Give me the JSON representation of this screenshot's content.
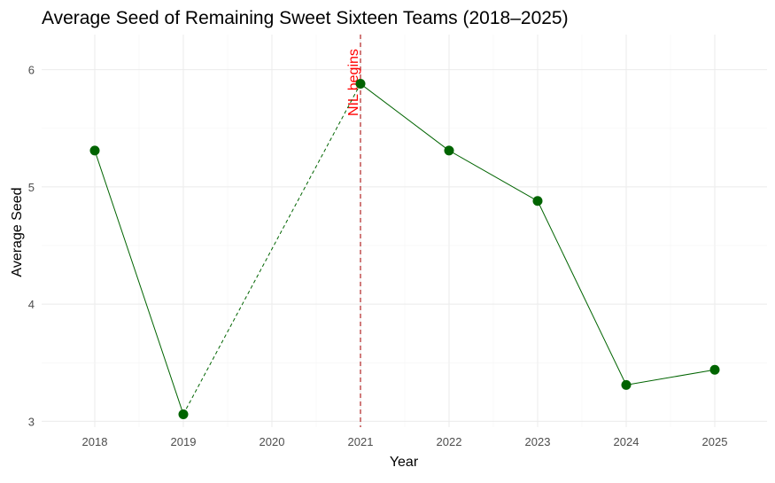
{
  "chart_data": {
    "type": "line",
    "title": "Average Seed of Remaining Sweet Sixteen Teams (2018–2025)",
    "xlabel": "Year",
    "ylabel": "Average Seed",
    "categories": [
      "2018",
      "2019",
      "2020",
      "2021",
      "2022",
      "2023",
      "2024",
      "2025"
    ],
    "x_ticks": [
      "2018",
      "2019",
      "2020",
      "2021",
      "2022",
      "2023",
      "2024",
      "2025"
    ],
    "y_ticks": [
      "3",
      "4",
      "5",
      "6"
    ],
    "ylim": [
      2.95,
      6.3
    ],
    "series": [
      {
        "points": [
          {
            "x": "2018",
            "y": 5.31
          },
          {
            "x": "2019",
            "y": 3.06
          },
          {
            "x": "2021",
            "y": 5.88
          },
          {
            "x": "2022",
            "y": 5.31
          },
          {
            "x": "2023",
            "y": 4.88
          },
          {
            "x": "2024",
            "y": 3.31
          },
          {
            "x": "2025",
            "y": 3.44
          }
        ],
        "color": "#006400",
        "dashed_segment": [
          "2019",
          "2021"
        ]
      }
    ],
    "annotations": [
      {
        "x": "2021",
        "text": "NIL begins",
        "color": "#ff0000",
        "line_color": "#b22222",
        "line_style": "dashed"
      }
    ],
    "grid": true,
    "legend": "none"
  }
}
